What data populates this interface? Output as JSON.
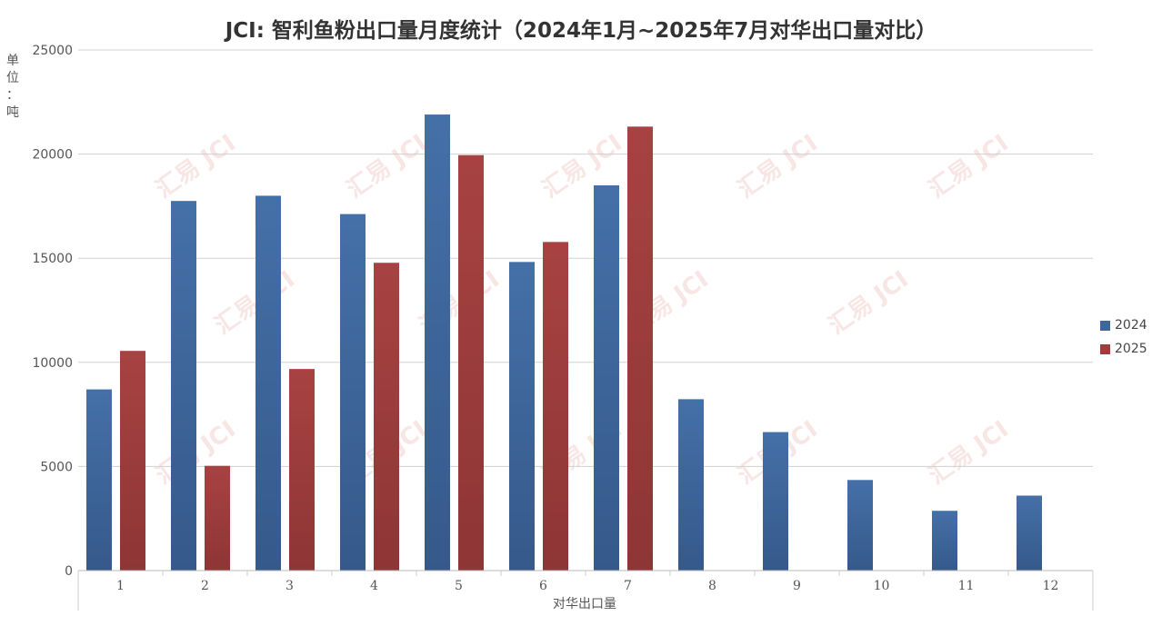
{
  "chart_data": {
    "type": "bar",
    "title": "JCI: 智利鱼粉出口量月度统计（2024年1月~2025年7月对华出口量对比）",
    "ylabel": "单\n位\n：\n吨",
    "xlabel": "对华出口量",
    "categories": [
      "1",
      "2",
      "3",
      "4",
      "5",
      "6",
      "7",
      "8",
      "9",
      "10",
      "11",
      "12"
    ],
    "ylim": [
      0,
      25000
    ],
    "yticks": [
      0,
      5000,
      10000,
      15000,
      20000,
      25000
    ],
    "grid": true,
    "legend_position": "right",
    "series": [
      {
        "name": "2024",
        "color": "#3f679c",
        "values": [
          8700,
          17750,
          18000,
          17120,
          21900,
          14820,
          18500,
          8230,
          6650,
          4350,
          2870,
          3600
        ]
      },
      {
        "name": "2025",
        "color": "#a03c3c",
        "values": [
          10550,
          5030,
          9680,
          14780,
          19950,
          15780,
          21320,
          null,
          null,
          null,
          null,
          null
        ]
      }
    ],
    "watermark": "汇易 JCI"
  }
}
